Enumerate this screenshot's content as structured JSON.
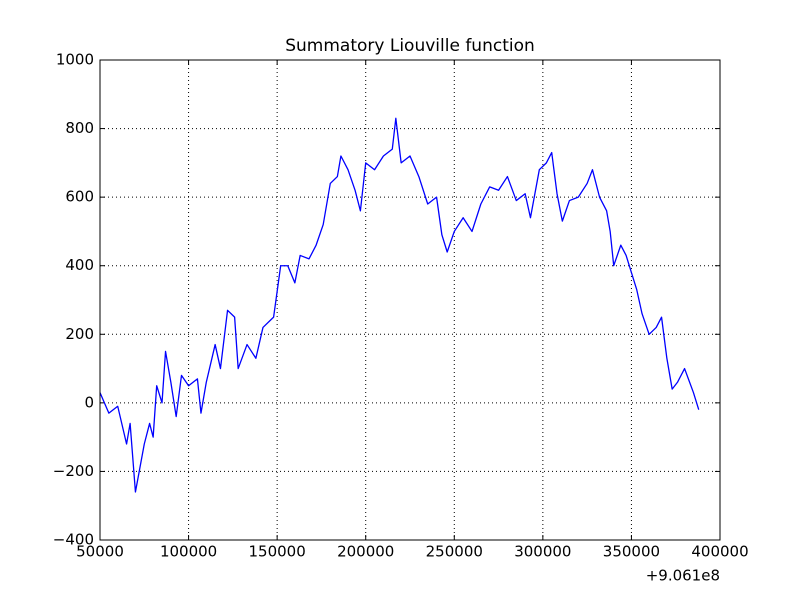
{
  "chart_data": {
    "type": "line",
    "title": "Summatory Liouville function",
    "x_offset_label": "+9.061e8",
    "x": [
      50000,
      55000,
      60000,
      65000,
      67000,
      70000,
      75000,
      78000,
      80000,
      82000,
      85000,
      87000,
      90000,
      93000,
      96000,
      100000,
      105000,
      107000,
      110000,
      115000,
      118000,
      122000,
      126000,
      128000,
      133000,
      138000,
      142000,
      148000,
      152000,
      156000,
      160000,
      163000,
      168000,
      172000,
      176000,
      180000,
      184000,
      186000,
      190000,
      194000,
      197000,
      200000,
      205000,
      210000,
      215000,
      217000,
      220000,
      225000,
      230000,
      235000,
      240000,
      243000,
      246000,
      250000,
      255000,
      260000,
      265000,
      270000,
      275000,
      280000,
      285000,
      290000,
      293000,
      298000,
      302000,
      305000,
      308000,
      311000,
      315000,
      320000,
      325000,
      328000,
      332000,
      336000,
      338000,
      340000,
      344000,
      347000,
      350000,
      353000,
      356000,
      360000,
      364000,
      367000,
      370000,
      373000,
      376000,
      380000,
      385000,
      388000
    ],
    "series": [
      {
        "color": "#0000ff",
        "values": [
          30,
          -30,
          -10,
          -120,
          -60,
          -260,
          -120,
          -60,
          -100,
          50,
          0,
          150,
          60,
          -40,
          80,
          50,
          70,
          -30,
          60,
          170,
          100,
          270,
          250,
          100,
          170,
          130,
          220,
          250,
          400,
          400,
          350,
          430,
          420,
          460,
          520,
          640,
          660,
          720,
          680,
          620,
          560,
          700,
          680,
          720,
          740,
          830,
          700,
          720,
          660,
          580,
          600,
          490,
          440,
          500,
          540,
          500,
          580,
          630,
          620,
          660,
          590,
          610,
          540,
          680,
          700,
          730,
          610,
          530,
          590,
          600,
          640,
          680,
          600,
          560,
          500,
          400,
          460,
          430,
          380,
          330,
          260,
          200,
          220,
          250,
          130,
          40,
          60,
          100,
          30,
          -20
        ]
      }
    ],
    "xlim": [
      50000,
      400000
    ],
    "xticks": [
      50000,
      100000,
      150000,
      200000,
      250000,
      300000,
      350000,
      400000
    ],
    "ylim": [
      -400,
      1000
    ],
    "yticks": [
      {
        "value": -400,
        "label": "−400"
      },
      {
        "value": -200,
        "label": "−200"
      },
      0,
      200,
      400,
      600,
      800,
      1000
    ],
    "grid": true
  }
}
